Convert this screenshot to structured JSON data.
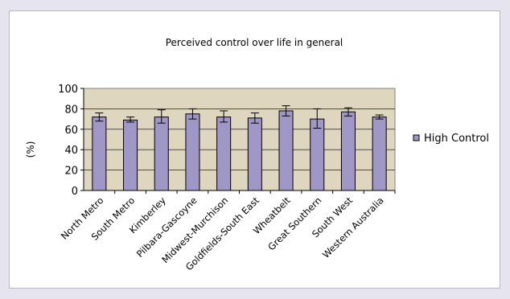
{
  "chart_data": {
    "type": "bar",
    "title": "Perceived control over life in general",
    "ylabel": "(%)",
    "xlabel": "",
    "ylim": [
      0,
      100
    ],
    "yticks": [
      0,
      20,
      40,
      60,
      80,
      100
    ],
    "grid": true,
    "legend_position": "right",
    "categories": [
      "North Metro",
      "South Metro",
      "Kimberley",
      "Pilbara-Gascoyne",
      "Midwest-Murchison",
      "Goldfields-South East",
      "Wheatbelt",
      "Great Southern",
      "South West",
      "Western Australia"
    ],
    "series": [
      {
        "name": "High Control",
        "values": [
          72,
          69,
          72,
          75,
          72,
          71,
          78,
          70,
          77,
          72
        ],
        "error_low": [
          68,
          67,
          66,
          70,
          67,
          66,
          73,
          61,
          73,
          70
        ],
        "error_high": [
          76,
          72,
          79,
          80,
          78,
          76,
          83,
          80,
          81,
          74
        ]
      }
    ],
    "colors": {
      "bar_fill": "#9f98c6",
      "bar_stroke": "#000000",
      "plot_bg": "#ded6bf",
      "page_bg": "#e6e4ee"
    }
  }
}
